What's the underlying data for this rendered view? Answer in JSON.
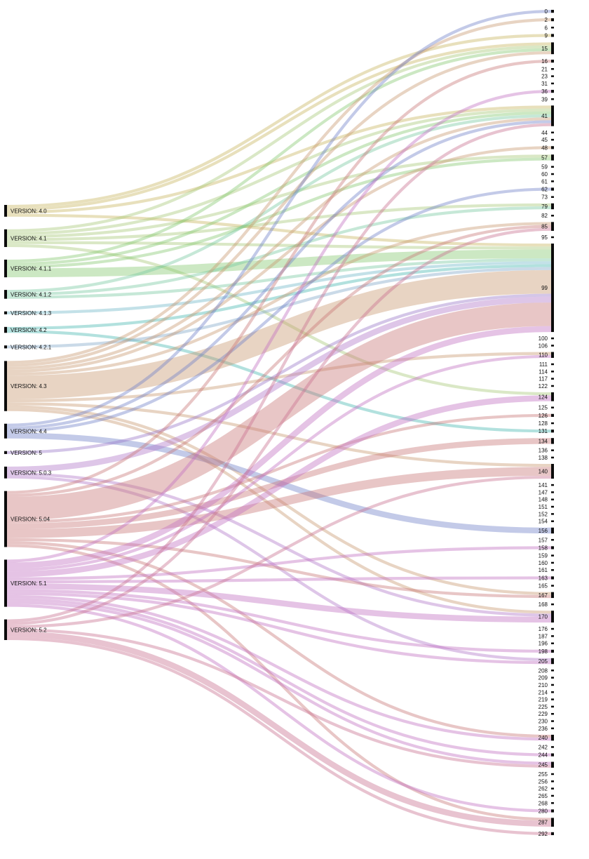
{
  "chart_data": {
    "type": "sankey",
    "left_nodes": [
      {
        "label": "VERSION: 4.0",
        "color": "#c8b560"
      },
      {
        "label": "VERSION: 4.1",
        "color": "#a6c878"
      },
      {
        "label": "VERSION: 4.1.1",
        "color": "#86c870"
      },
      {
        "label": "VERSION: 4.1.2",
        "color": "#78c8a0"
      },
      {
        "label": "VERSION: 4.1.3",
        "color": "#70b8c8"
      },
      {
        "label": "VERSION: 4.2",
        "color": "#48b8b0"
      },
      {
        "label": "VERSION: 4.2.1",
        "color": "#80a8c8"
      },
      {
        "label": "VERSION: 4.3",
        "color": "#c89870"
      },
      {
        "label": "VERSION: 4.4",
        "color": "#7080c8"
      },
      {
        "label": "VERSION: 5",
        "color": "#9878c8"
      },
      {
        "label": "VERSION: 5.0.3",
        "color": "#b078c8"
      },
      {
        "label": "VERSION: 5.04",
        "color": "#c87878"
      },
      {
        "label": "VERSION: 5.1",
        "color": "#c070c0"
      },
      {
        "label": "VERSION: 5.2",
        "color": "#c87090"
      }
    ],
    "right_nodes": [
      "0",
      "2",
      "6",
      "9",
      "15",
      "16",
      "21",
      "23",
      "31",
      "36",
      "39",
      "41",
      "44",
      "45",
      "48",
      "57",
      "59",
      "60",
      "61",
      "62",
      "73",
      "79",
      "82",
      "85",
      "95",
      "99",
      "100",
      "106",
      "110",
      "111",
      "114",
      "117",
      "122",
      "124",
      "125",
      "126",
      "128",
      "131",
      "134",
      "136",
      "138",
      "140",
      "141",
      "147",
      "148",
      "151",
      "152",
      "154",
      "156",
      "157",
      "158",
      "159",
      "160",
      "161",
      "163",
      "165",
      "167",
      "168",
      "170",
      "176",
      "187",
      "196",
      "198",
      "205",
      "208",
      "209",
      "210",
      "214",
      "219",
      "225",
      "229",
      "230",
      "236",
      "240",
      "242",
      "244",
      "245",
      "255",
      "256",
      "262",
      "265",
      "268",
      "280",
      "287",
      "292"
    ],
    "links": [
      {
        "source": "VERSION: 4.0",
        "target": "15",
        "value": 1
      },
      {
        "source": "VERSION: 4.0",
        "target": "9",
        "value": 1
      },
      {
        "source": "VERSION: 4.0",
        "target": "41",
        "value": 1
      },
      {
        "source": "VERSION: 4.0",
        "target": "99",
        "value": 1
      },
      {
        "source": "VERSION: 4.1",
        "target": "15",
        "value": 1
      },
      {
        "source": "VERSION: 4.1",
        "target": "41",
        "value": 1
      },
      {
        "source": "VERSION: 4.1",
        "target": "57",
        "value": 1
      },
      {
        "source": "VERSION: 4.1",
        "target": "79",
        "value": 1
      },
      {
        "source": "VERSION: 4.1",
        "target": "99",
        "value": 1
      },
      {
        "source": "VERSION: 4.1",
        "target": "124",
        "value": 1
      },
      {
        "source": "VERSION: 4.1.1",
        "target": "99",
        "value": 3
      },
      {
        "source": "VERSION: 4.1.1",
        "target": "41",
        "value": 1
      },
      {
        "source": "VERSION: 4.1.1",
        "target": "15",
        "value": 1
      },
      {
        "source": "VERSION: 4.1.1",
        "target": "57",
        "value": 1
      },
      {
        "source": "VERSION: 4.1.2",
        "target": "79",
        "value": 1
      },
      {
        "source": "VERSION: 4.1.2",
        "target": "41",
        "value": 1
      },
      {
        "source": "VERSION: 4.1.2",
        "target": "99",
        "value": 1
      },
      {
        "source": "VERSION: 4.1.3",
        "target": "99",
        "value": 1
      },
      {
        "source": "VERSION: 4.2",
        "target": "99",
        "value": 1
      },
      {
        "source": "VERSION: 4.2",
        "target": "131",
        "value": 1
      },
      {
        "source": "VERSION: 4.2.1",
        "target": "99",
        "value": 1
      },
      {
        "source": "VERSION: 4.3",
        "target": "99",
        "value": 8
      },
      {
        "source": "VERSION: 4.3",
        "target": "2",
        "value": 1
      },
      {
        "source": "VERSION: 4.3",
        "target": "15",
        "value": 1
      },
      {
        "source": "VERSION: 4.3",
        "target": "41",
        "value": 1
      },
      {
        "source": "VERSION: 4.3",
        "target": "48",
        "value": 1
      },
      {
        "source": "VERSION: 4.3",
        "target": "85",
        "value": 1
      },
      {
        "source": "VERSION: 4.3",
        "target": "110",
        "value": 1
      },
      {
        "source": "VERSION: 4.3",
        "target": "140",
        "value": 1
      },
      {
        "source": "VERSION: 4.3",
        "target": "167",
        "value": 1
      },
      {
        "source": "VERSION: 4.3",
        "target": "170",
        "value": 1
      },
      {
        "source": "VERSION: 4.4",
        "target": "0",
        "value": 1
      },
      {
        "source": "VERSION: 4.4",
        "target": "41",
        "value": 1
      },
      {
        "source": "VERSION: 4.4",
        "target": "62",
        "value": 1
      },
      {
        "source": "VERSION: 4.4",
        "target": "156",
        "value": 2
      },
      {
        "source": "VERSION: 5",
        "target": "99",
        "value": 1
      },
      {
        "source": "VERSION: 5.0.3",
        "target": "99",
        "value": 2
      },
      {
        "source": "VERSION: 5.0.3",
        "target": "170",
        "value": 1
      },
      {
        "source": "VERSION: 5.0.3",
        "target": "205",
        "value": 1
      },
      {
        "source": "VERSION: 5.04",
        "target": "99",
        "value": 8
      },
      {
        "source": "VERSION: 5.04",
        "target": "134",
        "value": 2
      },
      {
        "source": "VERSION: 5.04",
        "target": "140",
        "value": 3
      },
      {
        "source": "VERSION: 5.04",
        "target": "167",
        "value": 1
      },
      {
        "source": "VERSION: 5.04",
        "target": "16",
        "value": 1
      },
      {
        "source": "VERSION: 5.04",
        "target": "85",
        "value": 1
      },
      {
        "source": "VERSION: 5.04",
        "target": "126",
        "value": 1
      },
      {
        "source": "VERSION: 5.04",
        "target": "240",
        "value": 1
      },
      {
        "source": "VERSION: 5.04",
        "target": "287",
        "value": 1
      },
      {
        "source": "VERSION: 5.1",
        "target": "99",
        "value": 2
      },
      {
        "source": "VERSION: 5.1",
        "target": "124",
        "value": 2
      },
      {
        "source": "VERSION: 5.1",
        "target": "170",
        "value": 2
      },
      {
        "source": "VERSION: 5.1",
        "target": "205",
        "value": 1
      },
      {
        "source": "VERSION: 5.1",
        "target": "158",
        "value": 1
      },
      {
        "source": "VERSION: 5.1",
        "target": "110",
        "value": 1
      },
      {
        "source": "VERSION: 5.1",
        "target": "36",
        "value": 1
      },
      {
        "source": "VERSION: 5.1",
        "target": "245",
        "value": 1
      },
      {
        "source": "VERSION: 5.1",
        "target": "240",
        "value": 1
      },
      {
        "source": "VERSION: 5.1",
        "target": "244",
        "value": 1
      },
      {
        "source": "VERSION: 5.1",
        "target": "198",
        "value": 1
      },
      {
        "source": "VERSION: 5.1",
        "target": "280",
        "value": 1
      },
      {
        "source": "VERSION: 5.1",
        "target": "163",
        "value": 1
      },
      {
        "source": "VERSION: 5.2",
        "target": "287",
        "value": 2
      },
      {
        "source": "VERSION: 5.2",
        "target": "140",
        "value": 1
      },
      {
        "source": "VERSION: 5.2",
        "target": "85",
        "value": 1
      },
      {
        "source": "VERSION: 5.2",
        "target": "41",
        "value": 1
      },
      {
        "source": "VERSION: 5.2",
        "target": "245",
        "value": 1
      },
      {
        "source": "VERSION: 5.2",
        "target": "292",
        "value": 1
      }
    ]
  }
}
